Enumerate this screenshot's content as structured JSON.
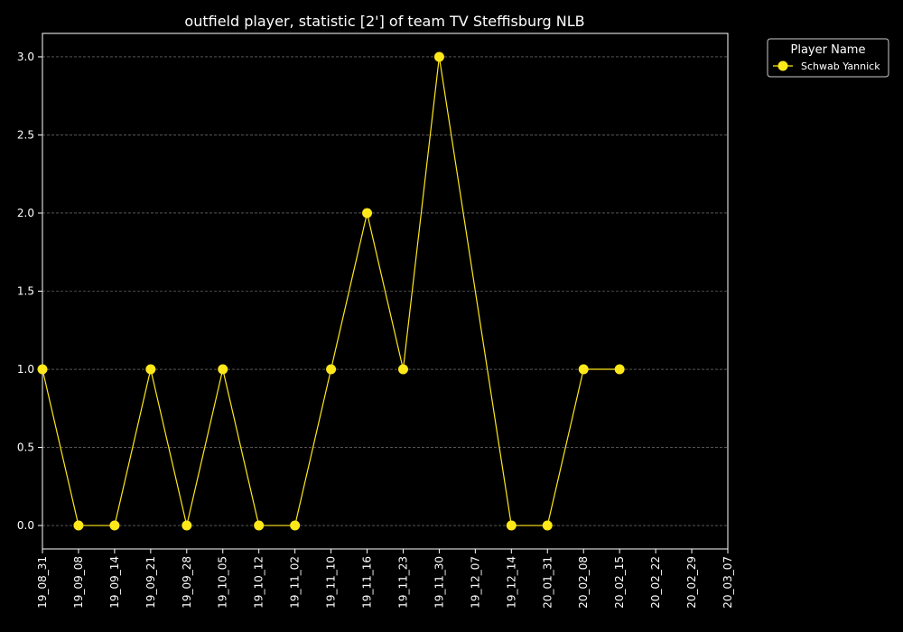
{
  "chart_data": {
    "type": "line",
    "title": "outfield player, statistic [2'] of team TV Steffisburg NLB",
    "xlabel": "",
    "ylabel": "",
    "categories": [
      "19_08_31",
      "19_09_08",
      "19_09_14",
      "19_09_21",
      "19_09_28",
      "19_10_05",
      "19_10_12",
      "19_11_02",
      "19_11_10",
      "19_11_16",
      "19_11_23",
      "19_11_30",
      "19_12_07",
      "19_12_14",
      "20_01_31",
      "20_02_08",
      "20_02_15",
      "20_02_22",
      "20_02_29",
      "20_03_07"
    ],
    "ylim": [
      -0.15,
      3.15
    ],
    "yticks": [
      "0.0",
      "0.5",
      "1.0",
      "1.5",
      "2.0",
      "2.5",
      "3.0"
    ],
    "grid": "horizontal dashed",
    "series": [
      {
        "name": "Schwab Yannick",
        "color": "#ffe81a",
        "values": [
          1,
          0,
          0,
          1,
          0,
          1,
          0,
          0,
          1,
          2,
          1,
          3,
          null,
          0,
          0,
          1,
          1,
          null,
          null,
          null
        ]
      }
    ],
    "legend": {
      "title": "Player Name",
      "placement": "outside-top-right"
    }
  }
}
